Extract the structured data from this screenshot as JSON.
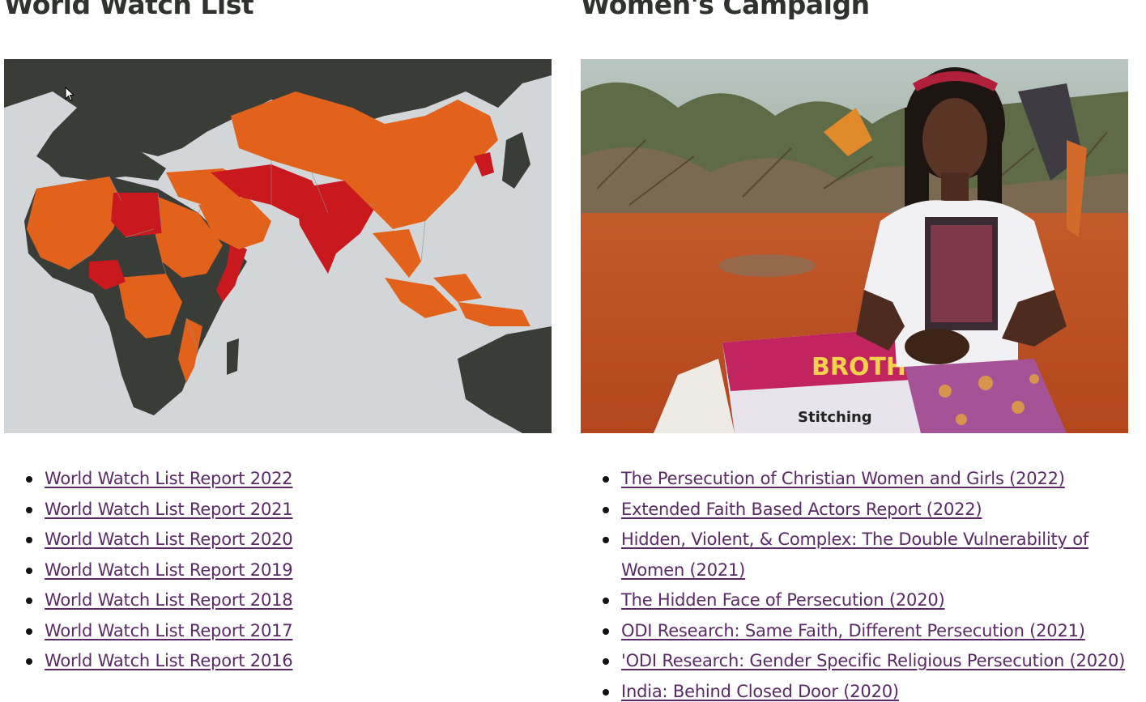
{
  "left_section": {
    "title": "World Watch List",
    "image_name": "persecution-map",
    "links": [
      "World Watch List Report 2022",
      "World Watch List Report 2021",
      "World Watch List Report 2020",
      "World Watch List Report 2019",
      "World Watch List Report 2018",
      "World Watch List Report 2017",
      "World Watch List Report 2016"
    ]
  },
  "right_section": {
    "title": "Women's Campaign",
    "image_name": "woman-with-sewing-machine-photo",
    "links": {
      "l0": "The Persecution of Christian Women and Girls (2022)",
      "l1": "Extended Faith Based Actors Report (2022)",
      "l2a": "Hidden, Violent, & Complex: The Double Vulnerability of",
      "l2b": "Women (2021)",
      "l3": "The Hidden Face of Persecution (2020)",
      "l4": "ODI Research: Same Faith, Different Persecution (2021)",
      "l5": "'ODI Research: Gender Specific Religious Persecution (2020)",
      "l6": "India: Behind Closed Door (2020)"
    },
    "photo_box_text": "BROTHER",
    "photo_box_subtext": "Stitching"
  },
  "colors": {
    "title": "#2f332d",
    "link": "#5a2a66",
    "map_ocean": "#d3d6d9",
    "map_land": "#3a3d37",
    "map_high": "#e2621b",
    "map_extreme": "#c9191e"
  }
}
